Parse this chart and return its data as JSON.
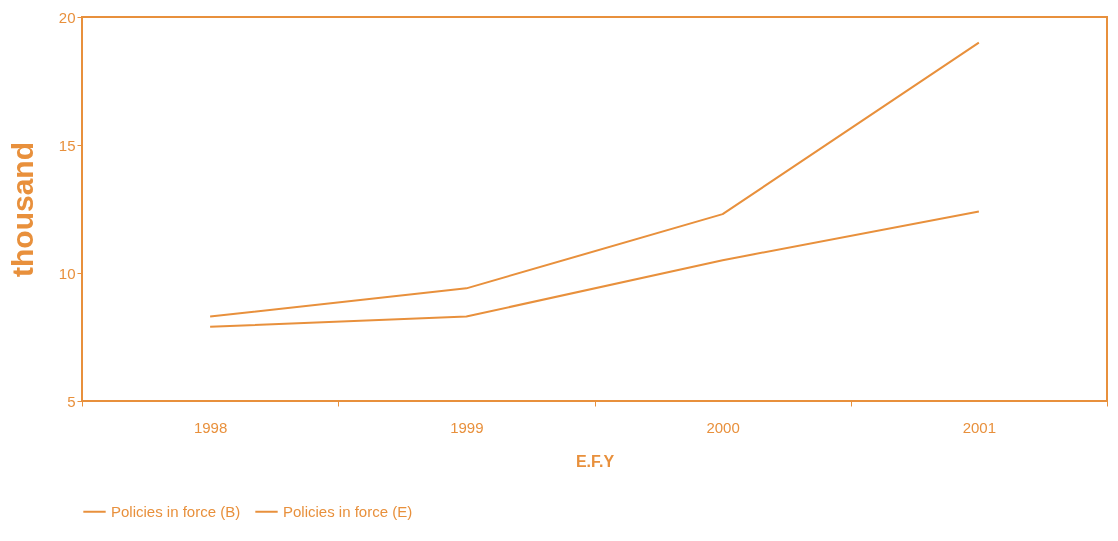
{
  "chart_data": {
    "type": "line",
    "xlabel": "E.F.Y",
    "ylabel": "thousand",
    "categories": [
      "1998",
      "1999",
      "2000",
      "2001"
    ],
    "series": [
      {
        "name": "Policies in force (B)",
        "color": "#e8903c",
        "values": [
          8.3,
          9.4,
          12.3,
          19.0
        ]
      },
      {
        "name": "Policies in force (E)",
        "color": "#e8903c",
        "values": [
          7.9,
          8.3,
          10.5,
          12.4
        ]
      }
    ],
    "ylim": [
      5,
      20
    ],
    "yticks": [
      5,
      10,
      15,
      20
    ],
    "grid": false,
    "legend": "bottom",
    "marker": "none",
    "line_style": "solid"
  }
}
